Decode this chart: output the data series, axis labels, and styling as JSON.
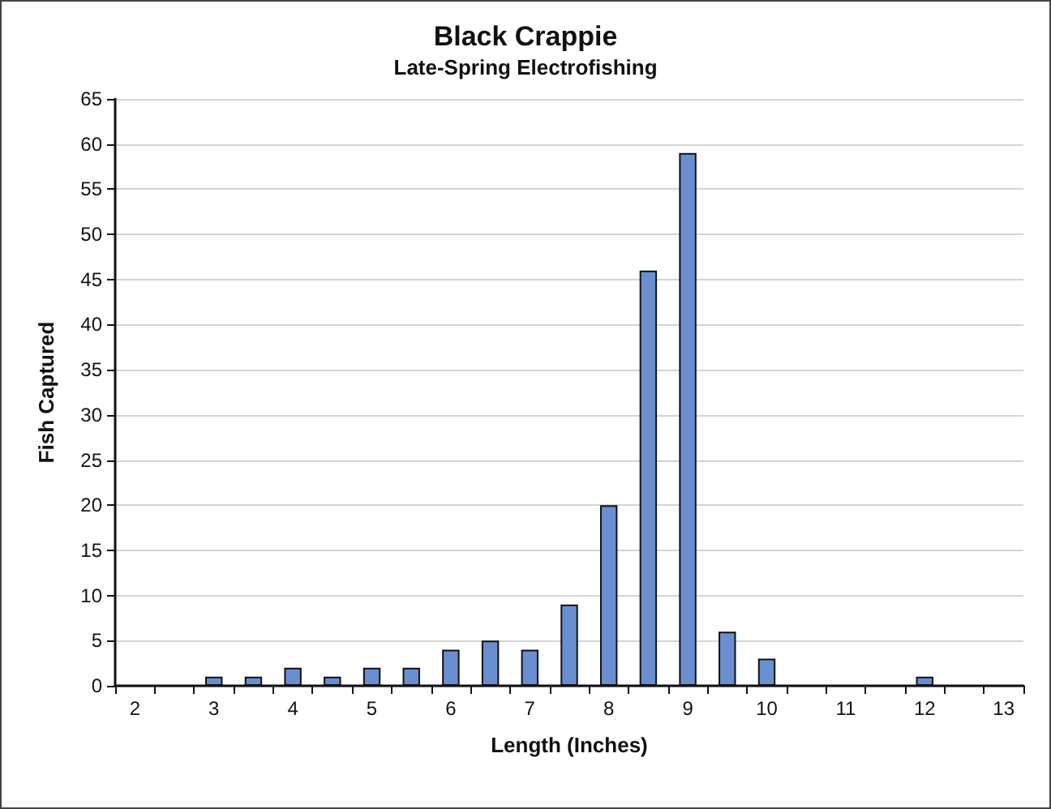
{
  "chart_data": {
    "type": "bar",
    "title": "Black Crappie",
    "subtitle": "Late-Spring Electrofishing",
    "xlabel": "Length (Inches)",
    "ylabel": "Fish Captured",
    "categories": [
      "2",
      null,
      "3",
      null,
      "4",
      null,
      "5",
      null,
      "6",
      null,
      "7",
      null,
      "8",
      null,
      "9",
      null,
      "10",
      null,
      "11",
      null,
      "12",
      null,
      "13"
    ],
    "values": [
      0,
      0,
      1,
      1,
      2,
      1,
      2,
      2,
      4,
      5,
      4,
      9,
      20,
      46,
      59,
      6,
      3,
      0,
      0,
      0,
      1,
      0,
      0
    ],
    "color": "#6a8fd0",
    "ylim": [
      0,
      65
    ],
    "yticks": [
      0,
      5,
      10,
      15,
      20,
      25,
      30,
      35,
      40,
      45,
      50,
      55,
      60,
      65
    ],
    "grid": "y"
  }
}
